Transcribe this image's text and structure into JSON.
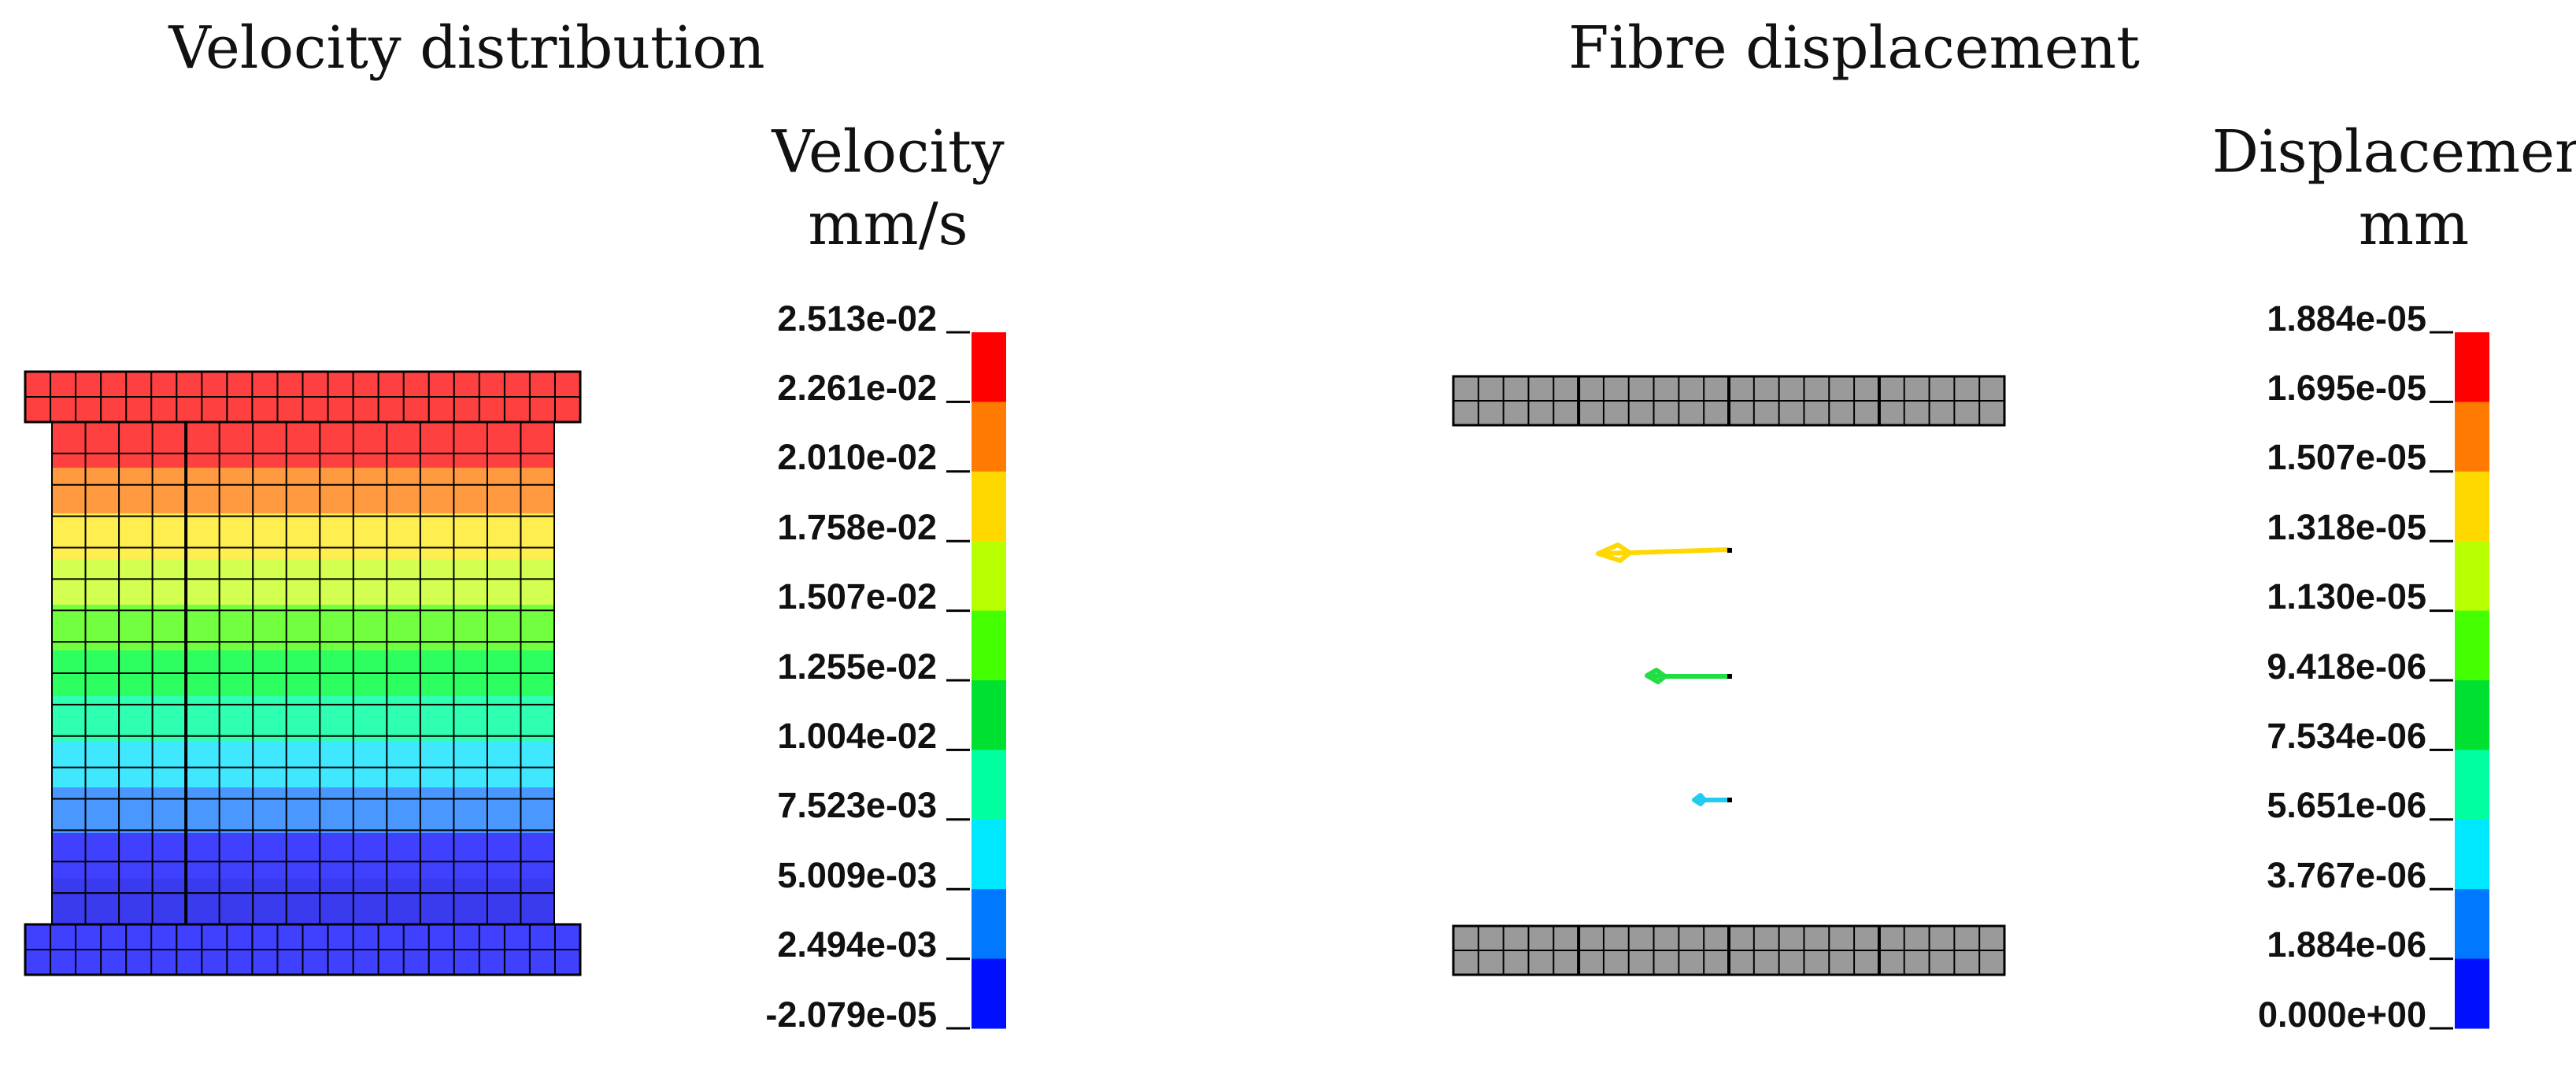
{
  "left_panel": {
    "title": "Velocity distribution",
    "legend_title_line1": "Velocity",
    "legend_title_line2": "mm/s",
    "legend_ticks": [
      "2.513e-02",
      "2.261e-02",
      "2.010e-02",
      "1.758e-02",
      "1.507e-02",
      "1.255e-02",
      "1.004e-02",
      "7.523e-03",
      "5.009e-03",
      "2.494e-03",
      "-2.079e-05"
    ]
  },
  "right_panel": {
    "title": "Fibre displacement",
    "legend_title_line1": "Displacement",
    "legend_title_line2": "mm",
    "legend_ticks": [
      "1.884e-05",
      "1.695e-05",
      "1.507e-05",
      "1.318e-05",
      "1.130e-05",
      "9.418e-06",
      "7.534e-06",
      "5.651e-06",
      "3.767e-06",
      "1.884e-06",
      "0.000e+00"
    ]
  },
  "colors": {
    "scale": [
      "#ff0000",
      "#ff7a00",
      "#ffd800",
      "#b8ff00",
      "#44ff00",
      "#00e030",
      "#00ffa0",
      "#00e8ff",
      "#0078ff",
      "#0010ff"
    ],
    "mesh_bands_top_to_bottom": [
      "#ff4040",
      "#ff9a40",
      "#ffee50",
      "#d2ff50",
      "#72ff40",
      "#2eff60",
      "#2effb0",
      "#40e8ff",
      "#4a98ff",
      "#4040ff",
      "#3a3aee"
    ],
    "plate_fill": "#ff4040",
    "plate_bottom_fill": "#4040ff",
    "grey_plate": "#9a9a9a",
    "arrow_top": "#ffd800",
    "arrow_mid": "#22dd44",
    "arrow_bottom": "#22ccee"
  }
}
